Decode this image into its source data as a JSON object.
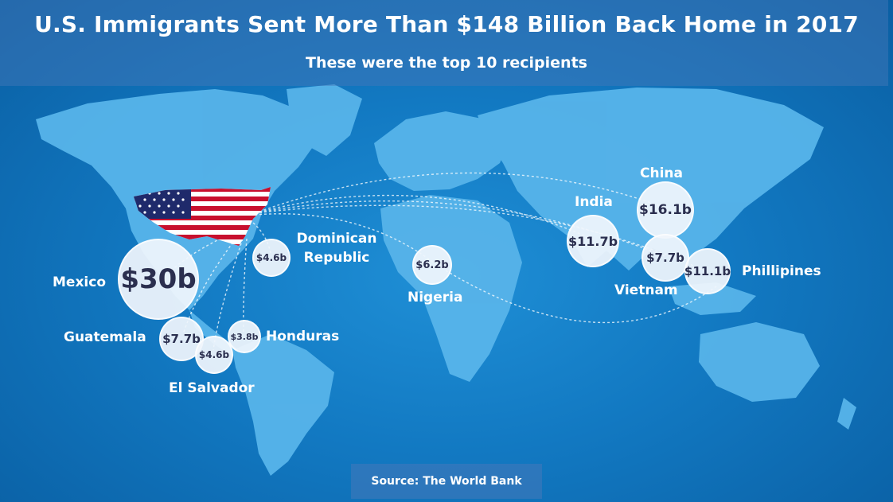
{
  "header": {
    "title": "U.S. Immigrants Sent More Than $148 Billion Back Home in 2017",
    "subtitle": "These were the top 10 recipients"
  },
  "recipients": [
    {
      "country": "Mexico",
      "amount": "$30b"
    },
    {
      "country": "China",
      "amount": "$16.1b"
    },
    {
      "country": "India",
      "amount": "$11.7b"
    },
    {
      "country": "Phillipines",
      "amount": "$11.1b"
    },
    {
      "country": "Vietnam",
      "amount": "$7.7b"
    },
    {
      "country": "Guatemala",
      "amount": "$7.7b"
    },
    {
      "country": "Nigeria",
      "amount": "$6.2b"
    },
    {
      "country": "Dominican Republic",
      "amount": "$4.6b"
    },
    {
      "country": "El Salvador",
      "amount": "$4.6b"
    },
    {
      "country": "Honduras",
      "amount": "$3.8b"
    }
  ],
  "footer": {
    "source": "Source: The World Bank"
  },
  "colors": {
    "ocean": "#1279c2",
    "land": "#57b4ea",
    "bubble": "#f0f5fc",
    "bubble_text": "#2b2f4f",
    "flag_red": "#c8102e",
    "flag_blue": "#1f2a6b"
  }
}
